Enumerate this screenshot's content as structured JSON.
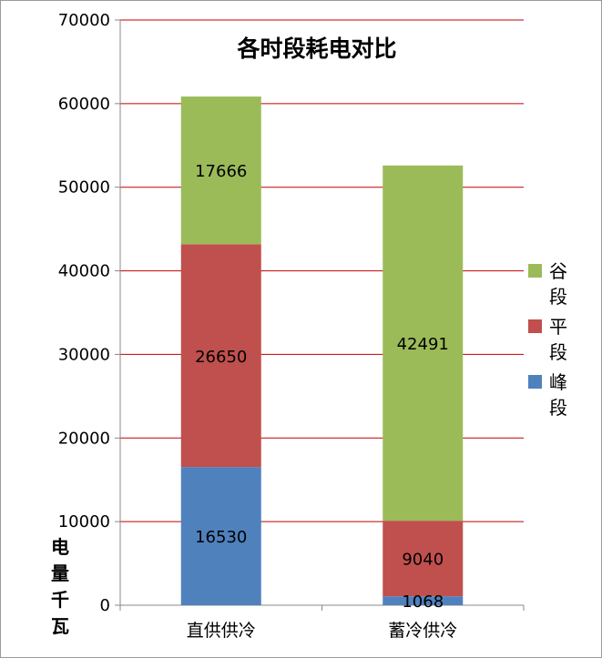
{
  "chart_data": {
    "type": "bar",
    "stacked": true,
    "title": "各时段耗电对比",
    "ylabel": "电量千瓦",
    "xlabel": "",
    "categories": [
      "直供供冷",
      "蓄冷供冷"
    ],
    "series": [
      {
        "name": "峰段",
        "color": "#4F81BD",
        "values": [
          16530,
          1068
        ]
      },
      {
        "name": "平段",
        "color": "#C0504D",
        "values": [
          26650,
          9040
        ]
      },
      {
        "name": "谷段",
        "color": "#9BBB59",
        "values": [
          17666,
          42491
        ]
      }
    ],
    "ylim": [
      0,
      70000
    ],
    "yticks": [
      0,
      10000,
      20000,
      30000,
      40000,
      50000,
      60000,
      70000
    ],
    "ytick_labels": [
      "0",
      "10000",
      "20000",
      "30000",
      "40000",
      "50000",
      "60000",
      "70000"
    ],
    "grid": true,
    "grid_color": "#C00000",
    "legend_position": "right",
    "legend_order": [
      "谷段",
      "平段",
      "峰段"
    ]
  }
}
